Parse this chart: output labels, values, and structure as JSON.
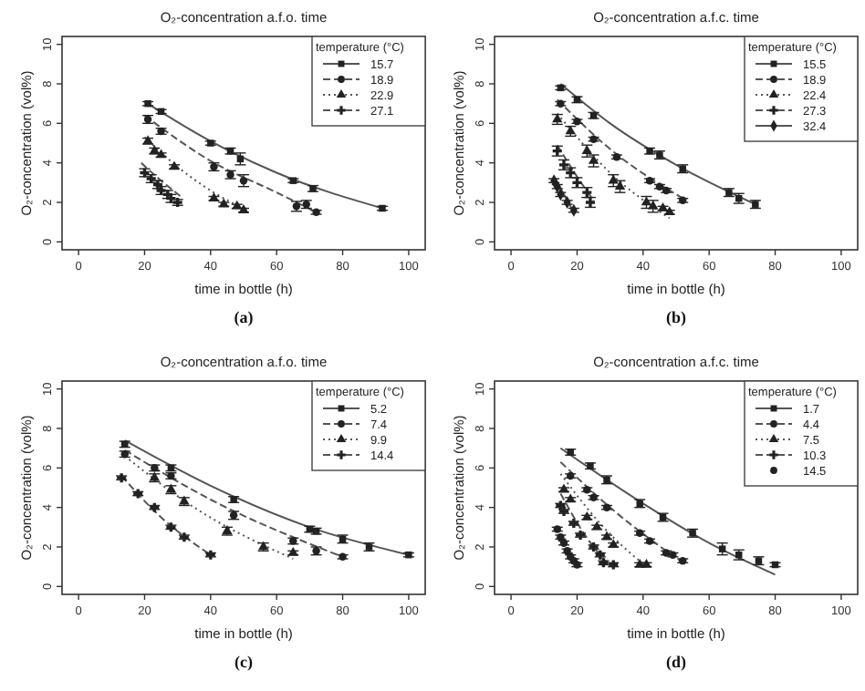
{
  "chart_data": [
    {
      "type": "scatter",
      "title": "O₂-concentration a.f.o. time",
      "xlabel": "time in bottle (h)",
      "ylabel": "O₂-concentration (vol%)",
      "legend_title": "temperature (°C)",
      "legend": "top right",
      "annotations": [
        "(a)"
      ],
      "xlim": [
        -5,
        105
      ],
      "ylim": [
        -0.4,
        10.4
      ],
      "xticks": [
        0,
        20,
        40,
        60,
        80,
        100
      ],
      "yticks": [
        0,
        2,
        4,
        6,
        8,
        10
      ],
      "series": [
        {
          "name": "15.7",
          "color": "#222222",
          "marker": "square",
          "x": [
            21,
            25,
            40,
            46,
            49,
            65,
            71,
            92
          ],
          "values": [
            7.0,
            6.6,
            5.0,
            4.6,
            4.2,
            3.1,
            2.7,
            1.7
          ],
          "errors": [
            0.1,
            0.1,
            0.1,
            0.15,
            0.3,
            0.1,
            0.15,
            0.1
          ]
        },
        {
          "name": "18.9",
          "color": "#222222",
          "marker": "circle",
          "x": [
            21,
            25,
            41,
            46,
            50,
            66,
            69,
            72
          ],
          "values": [
            6.2,
            5.6,
            3.8,
            3.4,
            3.1,
            1.8,
            1.9,
            1.5
          ],
          "errors": [
            0.2,
            0.15,
            0.2,
            0.2,
            0.3,
            0.25,
            0.2,
            0.1
          ]
        },
        {
          "name": "22.9",
          "color": "#222222",
          "marker": "triangle",
          "x": [
            21,
            23,
            25,
            29,
            41,
            44,
            48,
            50
          ],
          "values": [
            5.1,
            4.6,
            4.4,
            3.8,
            2.2,
            1.9,
            1.8,
            1.6
          ],
          "errors": [
            0.15,
            0.15,
            0.1,
            0.1,
            0.1,
            0.1,
            0.1,
            0.1
          ]
        },
        {
          "name": "27.1",
          "color": "#222222",
          "marker": "cross",
          "x": [
            20,
            22,
            24,
            25,
            27,
            28,
            30
          ],
          "values": [
            3.5,
            3.2,
            2.9,
            2.6,
            2.4,
            2.2,
            2.0
          ],
          "errors": [
            0.2,
            0.2,
            0.2,
            0.2,
            0.2,
            0.2,
            0.15
          ]
        },
        {
          "type": "line",
          "color": "#555555",
          "line_style": "solid",
          "x": [
            20,
            40,
            60,
            92
          ],
          "values": [
            7.1,
            5.1,
            3.5,
            1.7
          ]
        },
        {
          "type": "line",
          "color": "#555555",
          "line_style": "dashed",
          "x": [
            20,
            40,
            60,
            72
          ],
          "values": [
            6.4,
            4.1,
            2.5,
            1.5
          ]
        },
        {
          "type": "line",
          "color": "#555555",
          "line_style": "dotted",
          "x": [
            20,
            30,
            40,
            51
          ],
          "values": [
            5.3,
            3.8,
            2.6,
            1.6
          ]
        },
        {
          "type": "line",
          "color": "#555555",
          "line_style": "dashed",
          "x": [
            19,
            25,
            31
          ],
          "values": [
            4.0,
            3.1,
            2.3
          ]
        }
      ]
    },
    {
      "type": "scatter",
      "title": "O₂-concentration a.f.c. time",
      "xlabel": "time in bottle (h)",
      "ylabel": "O₂-concentration (vol%)",
      "legend_title": "temperature (°C)",
      "legend": "top right",
      "annotations": [
        "(b)"
      ],
      "xlim": [
        -5,
        105
      ],
      "ylim": [
        -0.4,
        10.4
      ],
      "xticks": [
        0,
        20,
        40,
        60,
        80,
        100
      ],
      "yticks": [
        0,
        2,
        4,
        6,
        8,
        10
      ],
      "series": [
        {
          "name": "15.5",
          "color": "#222222",
          "marker": "square",
          "x": [
            15,
            20,
            25,
            42,
            45,
            52,
            66,
            69,
            74
          ],
          "values": [
            7.8,
            7.2,
            6.4,
            4.6,
            4.4,
            3.7,
            2.5,
            2.2,
            1.9
          ],
          "errors": [
            0.1,
            0.15,
            0.15,
            0.15,
            0.2,
            0.2,
            0.2,
            0.25,
            0.2
          ]
        },
        {
          "name": "18.9",
          "color": "#222222",
          "marker": "circle",
          "x": [
            15,
            20,
            25,
            32,
            42,
            45,
            47,
            52
          ],
          "values": [
            7.0,
            6.1,
            5.2,
            4.3,
            3.1,
            2.8,
            2.6,
            2.1
          ],
          "errors": [
            0.1,
            0.1,
            0.1,
            0.1,
            0.1,
            0.1,
            0.1,
            0.1
          ]
        },
        {
          "name": "22.4",
          "color": "#222222",
          "marker": "triangle",
          "x": [
            14,
            18,
            23,
            25,
            31,
            33,
            41,
            43,
            46,
            48
          ],
          "values": [
            6.2,
            5.6,
            4.6,
            4.1,
            3.1,
            2.8,
            2.0,
            1.8,
            1.7,
            1.5
          ],
          "errors": [
            0.25,
            0.25,
            0.3,
            0.3,
            0.3,
            0.3,
            0.3,
            0.3,
            0.1,
            0.1
          ]
        },
        {
          "name": "27.3",
          "color": "#222222",
          "marker": "cross",
          "x": [
            14,
            16,
            18,
            20,
            23,
            24
          ],
          "values": [
            4.6,
            3.9,
            3.5,
            3.0,
            2.5,
            2.0
          ],
          "errors": [
            0.25,
            0.25,
            0.25,
            0.25,
            0.25,
            0.25
          ]
        },
        {
          "name": "32.4",
          "color": "#222222",
          "marker": "diamond",
          "x": [
            13,
            14,
            15,
            17,
            19
          ],
          "values": [
            3.1,
            2.8,
            2.4,
            2.0,
            1.6
          ],
          "errors": [
            0.1,
            0.1,
            0.1,
            0.1,
            0.1
          ]
        },
        {
          "type": "line",
          "color": "#555555",
          "line_style": "solid",
          "x": [
            15,
            30,
            50,
            74
          ],
          "values": [
            8.0,
            6.0,
            3.9,
            1.9
          ]
        },
        {
          "type": "line",
          "color": "#555555",
          "line_style": "dashed",
          "x": [
            14,
            30,
            52
          ],
          "values": [
            7.2,
            4.7,
            2.2
          ]
        },
        {
          "type": "line",
          "color": "#555555",
          "line_style": "dotted",
          "x": [
            14,
            30,
            48
          ],
          "values": [
            6.5,
            3.5,
            1.2
          ]
        },
        {
          "type": "line",
          "color": "#555555",
          "line_style": "dashed",
          "x": [
            14,
            20,
            25
          ],
          "values": [
            4.9,
            3.3,
            2.1
          ]
        },
        {
          "type": "line",
          "color": "#555555",
          "line_style": "solid",
          "x": [
            13,
            19
          ],
          "values": [
            3.3,
            1.5
          ]
        }
      ]
    },
    {
      "type": "scatter",
      "title": "O₂-concentration a.f.o. time",
      "xlabel": "time in bottle (h)",
      "ylabel": "O₂-concentration (vol%)",
      "legend_title": "temperature (°C)",
      "legend": "top right",
      "annotations": [
        "(c)"
      ],
      "xlim": [
        -5,
        105
      ],
      "ylim": [
        -0.4,
        10.4
      ],
      "xticks": [
        0,
        20,
        40,
        60,
        80,
        100
      ],
      "yticks": [
        0,
        2,
        4,
        6,
        8,
        10
      ],
      "series": [
        {
          "name": "5.2",
          "color": "#222222",
          "marker": "square",
          "x": [
            14,
            28,
            47,
            70,
            72,
            80,
            88,
            100
          ],
          "values": [
            7.2,
            6.0,
            4.4,
            2.9,
            2.8,
            2.4,
            2.0,
            1.6
          ],
          "errors": [
            0.15,
            0.15,
            0.15,
            0.15,
            0.15,
            0.2,
            0.2,
            0.1
          ]
        },
        {
          "name": "7.4",
          "color": "#222222",
          "marker": "circle",
          "x": [
            14,
            23,
            28,
            47,
            65,
            72,
            80
          ],
          "values": [
            6.7,
            6.0,
            5.6,
            3.6,
            2.3,
            1.8,
            1.5
          ],
          "errors": [
            0.15,
            0.15,
            0.15,
            0.2,
            0.15,
            0.2,
            0.1
          ]
        },
        {
          "name": "9.9",
          "color": "#222222",
          "marker": "triangle",
          "x": [
            23,
            28,
            32,
            45,
            56,
            65
          ],
          "values": [
            5.5,
            4.9,
            4.3,
            2.8,
            2.0,
            1.7
          ],
          "errors": [
            0.2,
            0.2,
            0.2,
            0.2,
            0.2,
            0.1
          ]
        },
        {
          "name": "14.4",
          "color": "#222222",
          "marker": "cross",
          "x": [
            13,
            18,
            23,
            28,
            32,
            40
          ],
          "values": [
            5.5,
            4.7,
            4.0,
            3.0,
            2.5,
            1.6
          ],
          "errors": [
            0.1,
            0.1,
            0.1,
            0.1,
            0.1,
            0.1
          ]
        },
        {
          "type": "line",
          "color": "#555555",
          "line_style": "solid",
          "x": [
            14,
            40,
            70,
            100
          ],
          "values": [
            7.4,
            5.1,
            3.0,
            1.6
          ]
        },
        {
          "type": "line",
          "color": "#555555",
          "line_style": "dashed",
          "x": [
            14,
            40,
            80
          ],
          "values": [
            6.9,
            4.4,
            1.5
          ]
        },
        {
          "type": "line",
          "color": "#555555",
          "line_style": "dotted",
          "x": [
            14,
            35,
            65
          ],
          "values": [
            6.6,
            4.0,
            1.4
          ]
        },
        {
          "type": "line",
          "color": "#555555",
          "line_style": "dashed",
          "x": [
            13,
            25,
            40
          ],
          "values": [
            5.6,
            3.5,
            1.6
          ]
        }
      ]
    },
    {
      "type": "scatter",
      "title": "O₂-concentration a.f.c. time",
      "xlabel": "time in bottle (h)",
      "ylabel": "O₂-concentration (vol%)",
      "legend_title": "temperature (°C)",
      "legend": "top right",
      "annotations": [
        "(d)"
      ],
      "xlim": [
        -5,
        105
      ],
      "ylim": [
        -0.4,
        10.4
      ],
      "xticks": [
        0,
        20,
        40,
        60,
        80,
        100
      ],
      "yticks": [
        0,
        2,
        4,
        6,
        8,
        10
      ],
      "series": [
        {
          "name": "1.7",
          "color": "#222222",
          "marker": "square",
          "x": [
            18,
            24,
            29,
            39,
            46,
            55,
            64,
            69,
            75,
            80
          ],
          "values": [
            6.8,
            6.1,
            5.4,
            4.2,
            3.5,
            2.7,
            1.9,
            1.6,
            1.3,
            1.1
          ],
          "errors": [
            0.15,
            0.15,
            0.2,
            0.2,
            0.2,
            0.2,
            0.3,
            0.25,
            0.2,
            0.1
          ]
        },
        {
          "name": "4.4",
          "color": "#222222",
          "marker": "circle",
          "x": [
            18,
            23,
            25,
            29,
            39,
            42,
            47,
            49,
            52
          ],
          "values": [
            5.6,
            4.9,
            4.5,
            4.0,
            2.7,
            2.3,
            1.7,
            1.6,
            1.3
          ],
          "errors": [
            0.1,
            0.1,
            0.1,
            0.1,
            0.1,
            0.1,
            0.1,
            0.1,
            0.1
          ]
        },
        {
          "name": "7.5",
          "color": "#222222",
          "marker": "triangle",
          "x": [
            16,
            18,
            23,
            26,
            29,
            31,
            39,
            41
          ],
          "values": [
            4.9,
            4.4,
            3.5,
            3.0,
            2.5,
            2.1,
            1.1,
            1.1
          ],
          "errors": [
            0.1,
            0.1,
            0.1,
            0.1,
            0.1,
            0.1,
            0.1,
            0.1
          ]
        },
        {
          "name": "10.3",
          "color": "#222222",
          "marker": "cross",
          "x": [
            15,
            16,
            19,
            21,
            25,
            27,
            28,
            31
          ],
          "values": [
            4.1,
            3.8,
            3.2,
            2.6,
            2.0,
            1.6,
            1.2,
            1.1
          ],
          "errors": [
            0.1,
            0.1,
            0.1,
            0.1,
            0.1,
            0.1,
            0.1,
            0.1
          ]
        },
        {
          "name": "14.5",
          "color": "#222222",
          "marker": "circle",
          "x": [
            14,
            15,
            16,
            17,
            18,
            19,
            20
          ],
          "values": [
            2.9,
            2.5,
            2.2,
            1.8,
            1.5,
            1.3,
            1.1
          ],
          "errors": [
            0.1,
            0.1,
            0.1,
            0.1,
            0.1,
            0.1,
            0.1
          ]
        },
        {
          "type": "line",
          "color": "#555555",
          "line_style": "solid",
          "x": [
            15,
            40,
            60,
            80
          ],
          "values": [
            7.0,
            4.2,
            2.2,
            0.6
          ]
        },
        {
          "type": "line",
          "color": "#555555",
          "line_style": "dashed",
          "x": [
            15,
            30,
            52
          ],
          "values": [
            6.3,
            4.0,
            1.2
          ]
        },
        {
          "type": "line",
          "color": "#555555",
          "line_style": "dotted",
          "x": [
            15,
            28,
            41
          ],
          "values": [
            5.7,
            3.0,
            1.0
          ]
        },
        {
          "type": "line",
          "color": "#555555",
          "line_style": "dashed",
          "x": [
            15,
            22,
            30
          ],
          "values": [
            4.7,
            2.7,
            1.0
          ]
        }
      ]
    }
  ]
}
